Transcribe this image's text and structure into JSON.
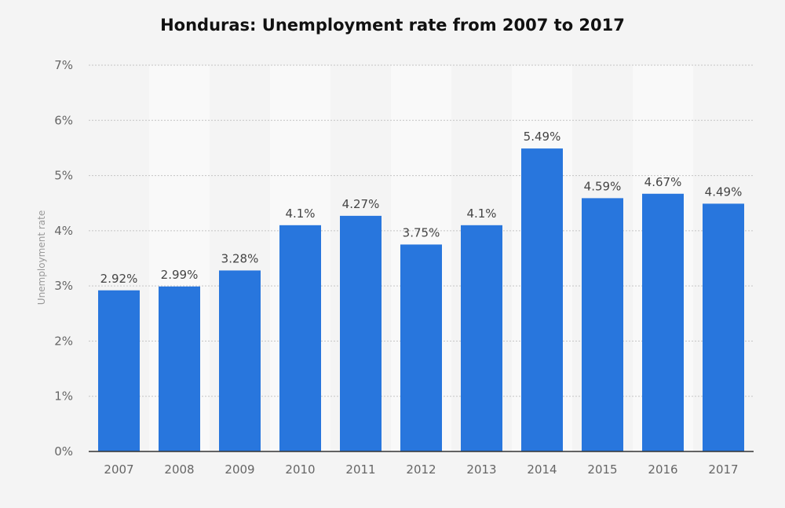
{
  "chart_data": {
    "type": "bar",
    "title": "Honduras: Unemployment rate from 2007 to 2017",
    "ylabel": "Unemployment rate",
    "xlabel": "",
    "categories": [
      "2007",
      "2008",
      "2009",
      "2010",
      "2011",
      "2012",
      "2013",
      "2014",
      "2015",
      "2016",
      "2017"
    ],
    "values": [
      2.92,
      2.99,
      3.28,
      4.1,
      4.27,
      3.75,
      4.1,
      5.49,
      4.59,
      4.67,
      4.49
    ],
    "value_labels": [
      "2.92%",
      "2.99%",
      "3.28%",
      "4.1%",
      "4.27%",
      "3.75%",
      "4.1%",
      "5.49%",
      "4.59%",
      "4.67%",
      "4.49%"
    ],
    "ylim": [
      0,
      7
    ],
    "yticks": [
      0,
      1,
      2,
      3,
      4,
      5,
      6,
      7
    ],
    "ytick_labels": [
      "0%",
      "1%",
      "2%",
      "3%",
      "4%",
      "5%",
      "6%",
      "7%"
    ],
    "grid": true,
    "legend": "none",
    "colors": {
      "bar": "#2876dd",
      "band": "#f9f9f9",
      "background": "#f4f4f4",
      "grid": "#c4c4c4",
      "axis": "#333333",
      "tick_text": "#666666",
      "label_text": "#444444",
      "ylabel_text": "#999999"
    }
  }
}
